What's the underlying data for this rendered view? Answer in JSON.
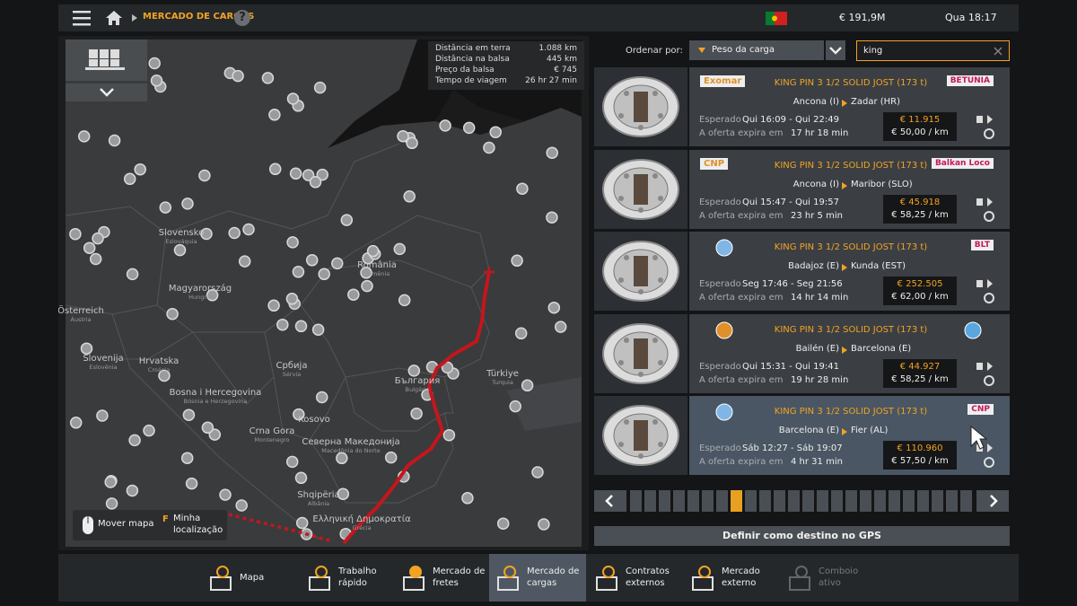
{
  "header": {
    "title": "MERCADO DE CARGAS",
    "help": "?",
    "money": "€ 191,9M",
    "clock": "Qua 18:17"
  },
  "map": {
    "info": [
      {
        "label": "Distância em terra",
        "value": "1.088 km"
      },
      {
        "label": "Distância na balsa",
        "value": "445 km"
      },
      {
        "label": "Preço da balsa",
        "value": "€ 745"
      },
      {
        "label": "Tempo de viagem",
        "value": "26 hr 27 min"
      }
    ],
    "labels": [
      {
        "name": "Slovensko",
        "sub": "Eslováquia"
      },
      {
        "name": "România",
        "sub": "Romênia"
      },
      {
        "name": "Magyarország",
        "sub": "Hungria"
      },
      {
        "name": "Österreich",
        "sub": "Áustria"
      },
      {
        "name": "Hrvatska",
        "sub": "Croácia"
      },
      {
        "name": "Slovenija",
        "sub": "Eslovênia"
      },
      {
        "name": "Србија",
        "sub": "Sérvia"
      },
      {
        "name": "Bosna i Hercegovina",
        "sub": "Bósnia e Herzegovina"
      },
      {
        "name": "България",
        "sub": "Bulgária"
      },
      {
        "name": "Türkiye",
        "sub": "Turquia"
      },
      {
        "name": "Kosovo"
      },
      {
        "name": "Crna Gora",
        "sub": "Montenegro"
      },
      {
        "name": "Северна Македонија",
        "sub": "Macedônia do Norte"
      },
      {
        "name": "Shqipëria",
        "sub": "Albânia"
      },
      {
        "name": "Ελληνική Δημοκρατία",
        "sub": "Grécia"
      }
    ],
    "move_map": "Mover mapa",
    "key": "F",
    "my_location": "Minha localização"
  },
  "market": {
    "sort_label": "Ordenar por:",
    "sort_value": "Peso da carga",
    "search": "king",
    "expected_label": "Esperado",
    "expires_label": "A oferta expira em",
    "offers": [
      {
        "company": "Exomar",
        "client": "BETUNIA",
        "cargo": "KING PIN 3 1/2 SOLID JOST (173 t)",
        "origin": "Ancona (I)",
        "destination": "Zadar (HR)",
        "window": "Qui 16:09 - Qui 22:49",
        "expires": "17 hr 18 min",
        "price": "€ 11.915",
        "rate": "€ 50,00 / km"
      },
      {
        "company": "CNP",
        "client": "Balkan Loco",
        "cargo": "KING PIN 3 1/2 SOLID JOST (173 t)",
        "origin": "Ancona (I)",
        "destination": "Maribor (SLO)",
        "window": "Qui 15:47 - Qui 19:57",
        "expires": "23 hr 5 min",
        "price": "€ 45.918",
        "rate": "€ 58,25 / km"
      },
      {
        "client": "BLT",
        "cargo": "KING PIN 3 1/2 SOLID JOST (173 t)",
        "origin": "Badajoz (E)",
        "destination": "Kunda (EST)",
        "window": "Seg 17:46 - Seg 21:56",
        "expires": "14 hr 14 min",
        "price": "€ 252.505",
        "rate": "€ 62,00 / km"
      },
      {
        "cargo": "KING PIN 3 1/2 SOLID JOST (173 t)",
        "origin": "Bailén (E)",
        "destination": "Barcelona (E)",
        "window": "Qui 15:31 - Qui 19:41",
        "expires": "19 hr 28 min",
        "price": "€ 44.927",
        "rate": "€ 58,25 / km"
      },
      {
        "client": "CNP",
        "cargo": "KING PIN 3 1/2 SOLID JOST (173 t)",
        "origin": "Barcelona (E)",
        "destination": "Fier (AL)",
        "window": "Sáb 12:27 - Sáb 19:07",
        "expires": "4 hr 31 min",
        "price": "€ 110.960",
        "rate": "€ 57,50 / km"
      }
    ],
    "gps_button": "Definir como destino no GPS"
  },
  "nav": [
    {
      "label": "Mapa"
    },
    {
      "label": "Trabalho rápido"
    },
    {
      "label": "Mercado de fretes"
    },
    {
      "label": "Mercado de cargas"
    },
    {
      "label": "Contratos externos"
    },
    {
      "label": "Mercado externo"
    },
    {
      "label": "Comboio ativo"
    }
  ]
}
